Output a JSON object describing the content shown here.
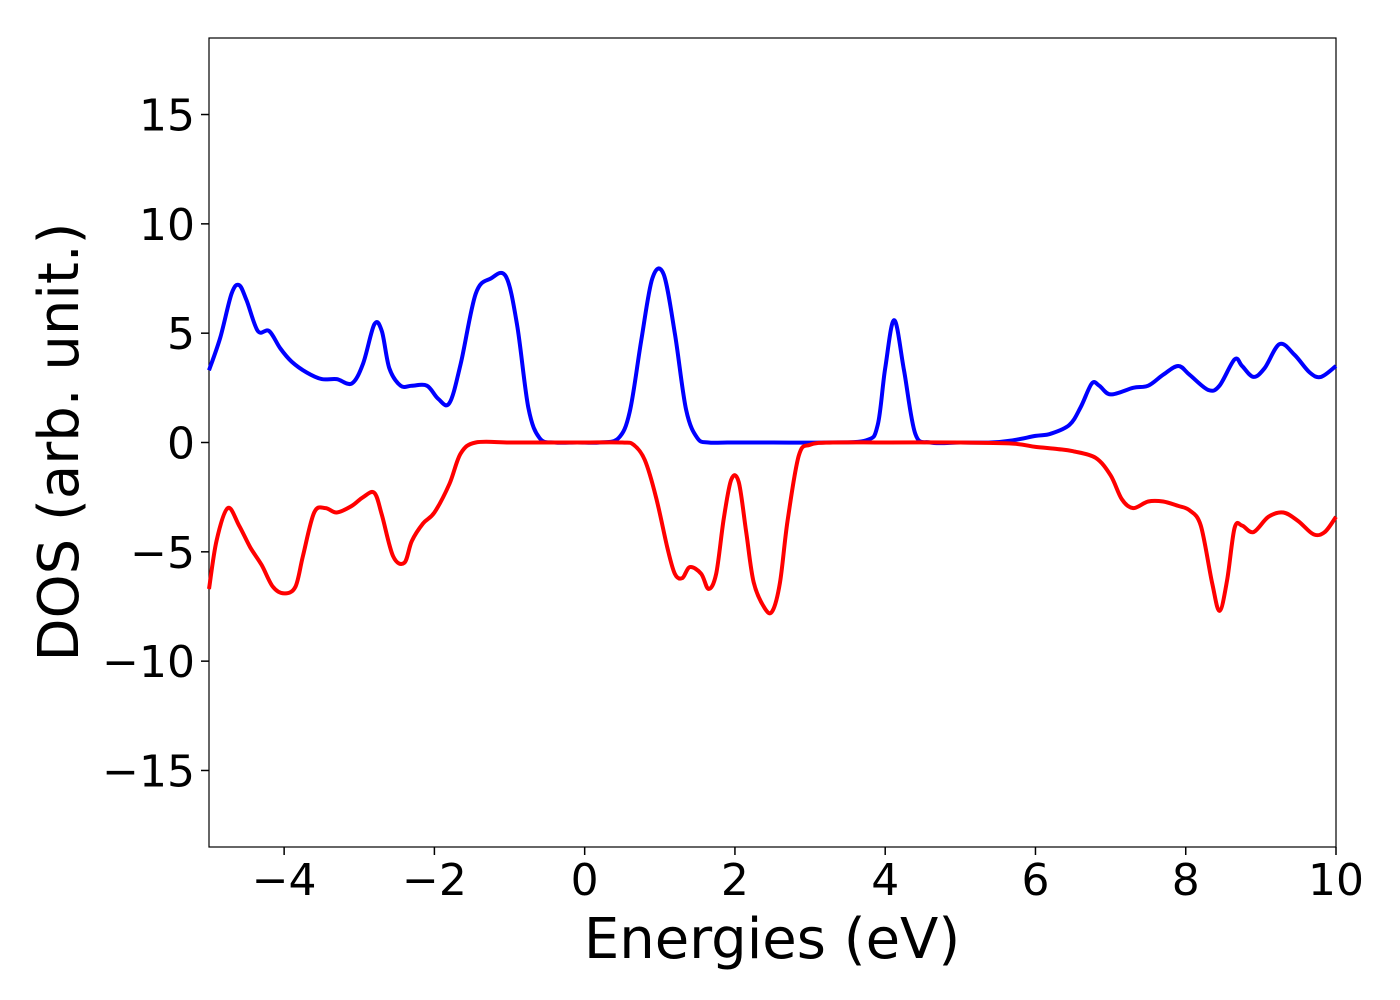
{
  "chart_data": {
    "type": "line",
    "title": "",
    "xlabel": "Energies (eV)",
    "ylabel": "DOS (arb. unit.)",
    "xlim": [
      -5,
      10
    ],
    "ylim": [
      -18.5,
      18.5
    ],
    "xticks": [
      -4,
      -2,
      0,
      2,
      4,
      6,
      8,
      10
    ],
    "xtick_labels": [
      "−4",
      "−2",
      "0",
      "2",
      "4",
      "6",
      "8",
      "10"
    ],
    "yticks": [
      15,
      10,
      5,
      0,
      -5,
      -10,
      -15
    ],
    "ytick_labels": [
      "15",
      "10",
      "5",
      "0",
      "−5",
      "−10",
      "−15"
    ],
    "grid": false,
    "legend": "none",
    "series": [
      {
        "color": "#0000ff",
        "x": [
          -5.0,
          -4.85,
          -4.7,
          -4.6,
          -4.5,
          -4.35,
          -4.2,
          -4.05,
          -3.9,
          -3.7,
          -3.5,
          -3.3,
          -3.1,
          -2.95,
          -2.8,
          -2.7,
          -2.6,
          -2.45,
          -2.3,
          -2.1,
          -1.95,
          -1.8,
          -1.65,
          -1.45,
          -1.25,
          -1.05,
          -0.9,
          -0.75,
          -0.6,
          -0.4,
          -0.1,
          0.2,
          0.45,
          0.6,
          0.75,
          0.9,
          1.05,
          1.2,
          1.35,
          1.5,
          1.65,
          1.9,
          2.5,
          3.2,
          3.75,
          3.9,
          4.0,
          4.12,
          4.25,
          4.4,
          4.6,
          5.0,
          5.4,
          5.7,
          6.0,
          6.2,
          6.45,
          6.6,
          6.75,
          6.85,
          7.0,
          7.3,
          7.5,
          7.7,
          7.9,
          8.05,
          8.3,
          8.45,
          8.65,
          8.75,
          8.9,
          9.05,
          9.25,
          9.45,
          9.65,
          9.8,
          10.0
        ],
        "y": [
          3.3,
          4.8,
          6.8,
          7.2,
          6.5,
          5.1,
          5.1,
          4.3,
          3.7,
          3.2,
          2.9,
          2.9,
          2.7,
          3.6,
          5.4,
          5.1,
          3.4,
          2.6,
          2.6,
          2.6,
          2.0,
          1.8,
          3.6,
          6.8,
          7.5,
          7.6,
          5.4,
          1.6,
          0.2,
          0.0,
          0.0,
          0.0,
          0.2,
          1.4,
          4.6,
          7.5,
          7.7,
          5.0,
          1.5,
          0.2,
          0.0,
          0.0,
          0.0,
          0.0,
          0.1,
          0.8,
          3.4,
          5.6,
          3.3,
          0.4,
          0.0,
          0.0,
          0.0,
          0.1,
          0.3,
          0.4,
          0.8,
          1.6,
          2.7,
          2.6,
          2.2,
          2.5,
          2.6,
          3.1,
          3.5,
          3.1,
          2.4,
          2.6,
          3.8,
          3.5,
          3.0,
          3.4,
          4.5,
          4.0,
          3.2,
          3.0,
          3.5
        ]
      },
      {
        "color": "#ff0000",
        "x": [
          -5.0,
          -4.9,
          -4.75,
          -4.6,
          -4.45,
          -4.3,
          -4.15,
          -4.0,
          -3.85,
          -3.75,
          -3.6,
          -3.45,
          -3.3,
          -3.1,
          -2.95,
          -2.8,
          -2.7,
          -2.55,
          -2.4,
          -2.3,
          -2.15,
          -2.0,
          -1.8,
          -1.65,
          -1.45,
          -1.0,
          -0.5,
          0.0,
          0.5,
          0.65,
          0.8,
          0.95,
          1.1,
          1.2,
          1.3,
          1.4,
          1.55,
          1.65,
          1.75,
          1.85,
          1.95,
          2.05,
          2.15,
          2.25,
          2.4,
          2.5,
          2.6,
          2.7,
          2.85,
          3.0,
          3.3,
          4.0,
          5.0,
          5.7,
          6.0,
          6.3,
          6.5,
          6.8,
          7.0,
          7.15,
          7.3,
          7.5,
          7.7,
          7.9,
          8.05,
          8.2,
          8.35,
          8.45,
          8.55,
          8.65,
          8.75,
          8.9,
          9.1,
          9.3,
          9.5,
          9.7,
          9.85,
          10.0
        ],
        "y": [
          -6.7,
          -4.5,
          -3.0,
          -3.8,
          -4.8,
          -5.6,
          -6.6,
          -6.9,
          -6.6,
          -5.2,
          -3.2,
          -3.0,
          -3.2,
          -2.9,
          -2.5,
          -2.3,
          -3.3,
          -5.2,
          -5.5,
          -4.5,
          -3.7,
          -3.2,
          -1.9,
          -0.5,
          0.0,
          0.0,
          0.0,
          0.0,
          0.0,
          -0.1,
          -0.8,
          -2.5,
          -4.8,
          -6.0,
          -6.2,
          -5.7,
          -6.0,
          -6.7,
          -6.0,
          -3.5,
          -1.7,
          -1.8,
          -4.1,
          -6.4,
          -7.6,
          -7.7,
          -6.4,
          -3.6,
          -0.6,
          -0.1,
          0.0,
          0.0,
          0.0,
          -0.05,
          -0.2,
          -0.3,
          -0.4,
          -0.7,
          -1.5,
          -2.6,
          -3.0,
          -2.7,
          -2.7,
          -2.9,
          -3.1,
          -3.8,
          -6.4,
          -7.7,
          -6.3,
          -3.9,
          -3.8,
          -4.1,
          -3.4,
          -3.2,
          -3.6,
          -4.2,
          -4.1,
          -3.4
        ]
      }
    ]
  }
}
